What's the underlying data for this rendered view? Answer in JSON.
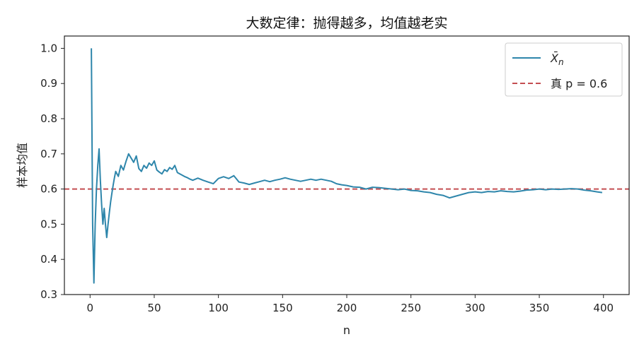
{
  "chart_data": {
    "type": "line",
    "title": "大数定律：抛得越多，均值越老实",
    "xlabel": "n",
    "ylabel": "样本均值",
    "xlim": [
      -20,
      420
    ],
    "ylim": [
      0.3,
      1.035
    ],
    "xticks": [
      "0",
      "50",
      "100",
      "150",
      "200",
      "250",
      "300",
      "350",
      "400"
    ],
    "yticks": [
      "0.3",
      "0.4",
      "0.5",
      "0.6",
      "0.7",
      "0.8",
      "0.9",
      "1.0"
    ],
    "grid": false,
    "legend_position": "top-right",
    "series": [
      {
        "name": "X̄ n",
        "color": "#2e86ab",
        "style": "solid",
        "x": [
          1,
          2,
          3,
          4,
          5,
          6,
          7,
          8,
          9,
          10,
          11,
          12,
          13,
          14,
          15,
          16,
          17,
          18,
          19,
          20,
          22,
          24,
          26,
          28,
          30,
          32,
          34,
          36,
          38,
          40,
          42,
          44,
          46,
          48,
          50,
          52,
          54,
          56,
          58,
          60,
          62,
          64,
          66,
          68,
          70,
          72,
          74,
          76,
          78,
          80,
          84,
          88,
          92,
          96,
          100,
          104,
          108,
          112,
          116,
          120,
          124,
          128,
          132,
          136,
          140,
          144,
          148,
          152,
          156,
          160,
          164,
          168,
          172,
          176,
          180,
          184,
          188,
          192,
          196,
          200,
          205,
          210,
          215,
          220,
          225,
          230,
          235,
          240,
          245,
          250,
          255,
          260,
          265,
          270,
          275,
          280,
          285,
          290,
          295,
          300,
          305,
          310,
          315,
          320,
          325,
          330,
          335,
          340,
          345,
          350,
          355,
          360,
          365,
          370,
          375,
          380,
          385,
          390,
          395,
          399
        ],
        "y": [
          1.0,
          0.5,
          0.333,
          0.5,
          0.6,
          0.667,
          0.714,
          0.625,
          0.556,
          0.5,
          0.545,
          0.5,
          0.462,
          0.5,
          0.533,
          0.563,
          0.588,
          0.611,
          0.632,
          0.65,
          0.636,
          0.667,
          0.654,
          0.679,
          0.7,
          0.688,
          0.676,
          0.694,
          0.658,
          0.65,
          0.667,
          0.659,
          0.674,
          0.667,
          0.68,
          0.654,
          0.648,
          0.643,
          0.655,
          0.65,
          0.661,
          0.656,
          0.667,
          0.647,
          0.643,
          0.639,
          0.635,
          0.632,
          0.628,
          0.625,
          0.631,
          0.625,
          0.62,
          0.615,
          0.63,
          0.635,
          0.63,
          0.638,
          0.62,
          0.617,
          0.613,
          0.617,
          0.621,
          0.625,
          0.621,
          0.625,
          0.628,
          0.632,
          0.628,
          0.625,
          0.622,
          0.625,
          0.628,
          0.625,
          0.628,
          0.625,
          0.622,
          0.615,
          0.612,
          0.61,
          0.606,
          0.605,
          0.6,
          0.605,
          0.604,
          0.602,
          0.6,
          0.598,
          0.6,
          0.596,
          0.595,
          0.592,
          0.59,
          0.585,
          0.582,
          0.575,
          0.58,
          0.585,
          0.59,
          0.592,
          0.59,
          0.593,
          0.592,
          0.595,
          0.593,
          0.592,
          0.594,
          0.597,
          0.598,
          0.6,
          0.598,
          0.6,
          0.599,
          0.6,
          0.601,
          0.6,
          0.597,
          0.595,
          0.592,
          0.59
        ]
      },
      {
        "name": "真 p = 0.6",
        "color": "#c44e52",
        "style": "dashed",
        "y_constant": 0.6
      }
    ]
  }
}
